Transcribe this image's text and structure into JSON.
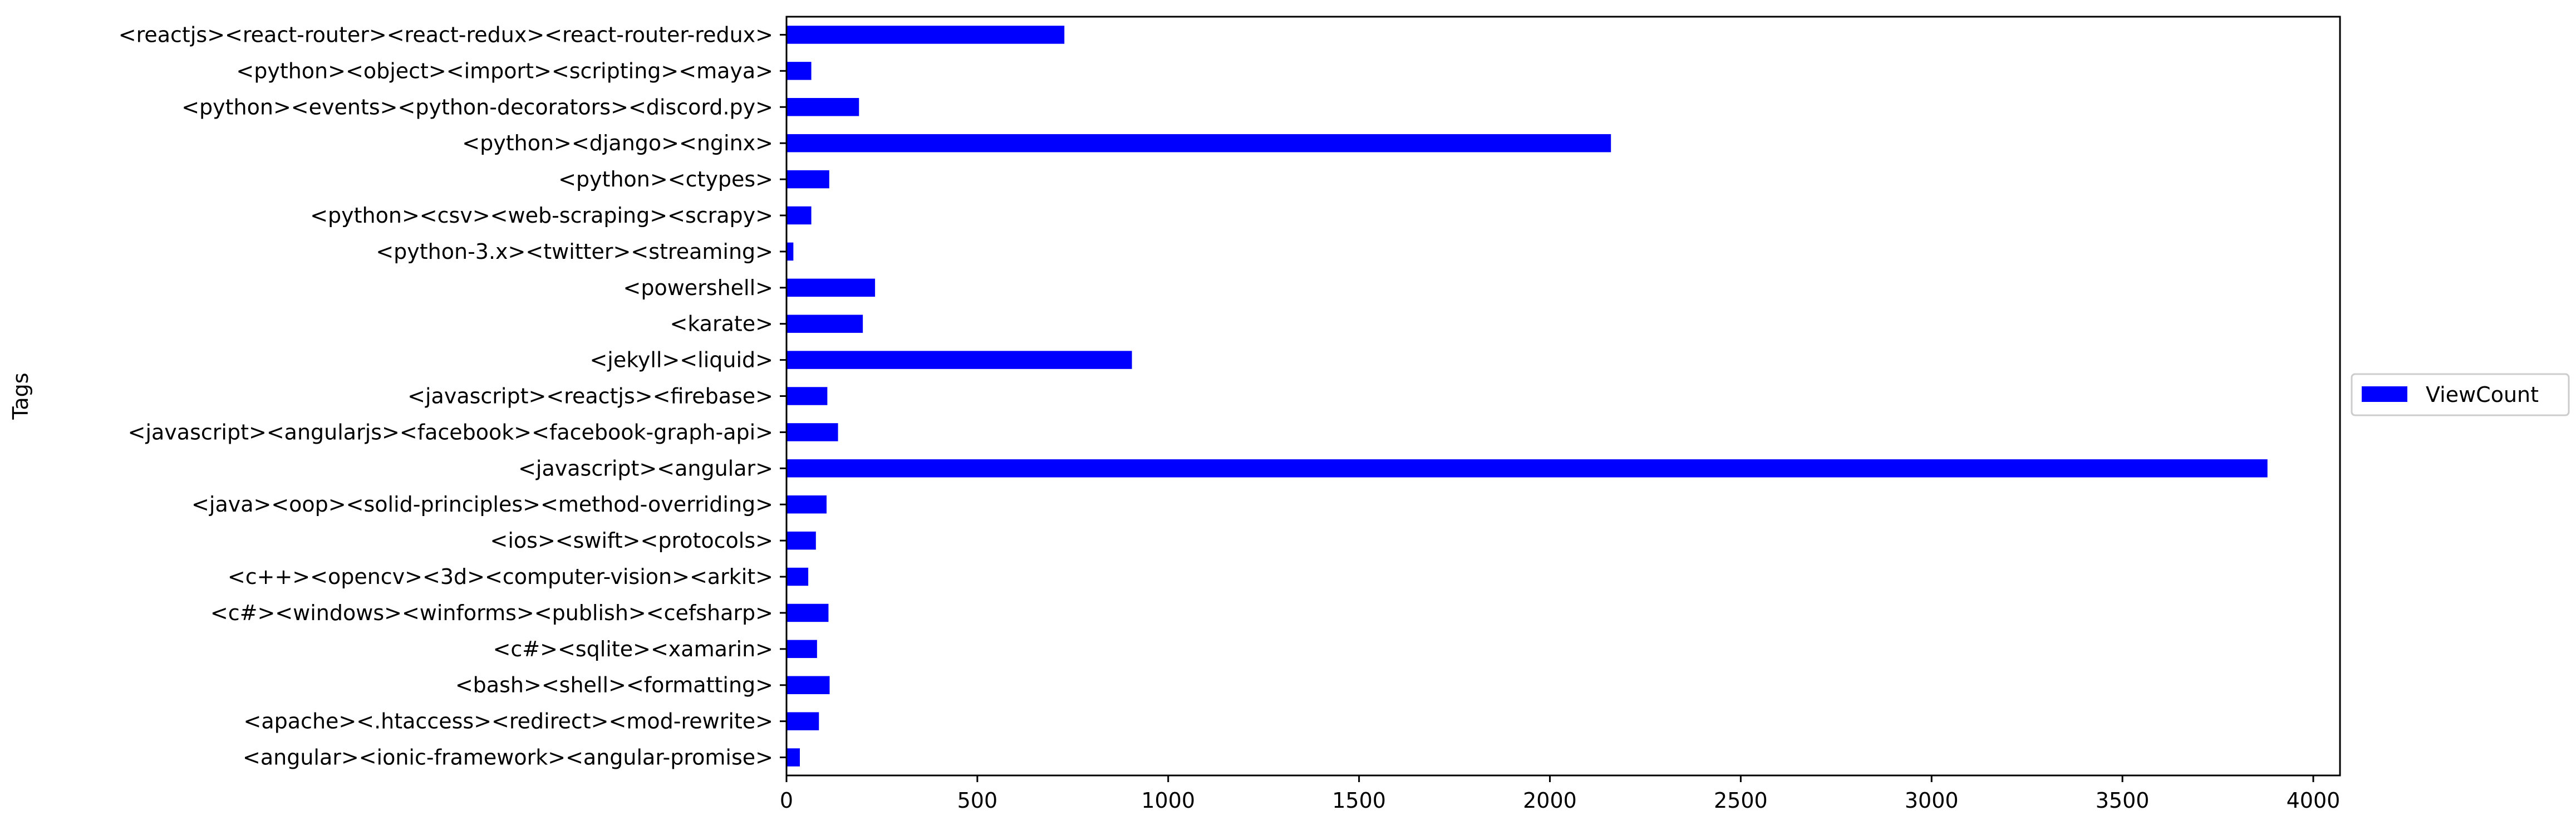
{
  "chart_data": {
    "type": "bar",
    "orientation": "horizontal",
    "ylabel": "Tags",
    "xlabel": "",
    "xlim": [
      0,
      4070
    ],
    "xticks": [
      0,
      500,
      1000,
      1500,
      2000,
      2500,
      3000,
      3500,
      4000
    ],
    "categories": [
      "<angular><ionic-framework><angular-promise>",
      "<apache><.htaccess><redirect><mod-rewrite>",
      "<bash><shell><formatting>",
      "<c#><sqlite><xamarin>",
      "<c#><windows><winforms><publish><cefsharp>",
      "<c++><opencv><3d><computer-vision><arkit>",
      "<ios><swift><protocols>",
      "<java><oop><solid-principles><method-overriding>",
      "<javascript><angular>",
      "<javascript><angularjs><facebook><facebook-graph-api>",
      "<javascript><reactjs><firebase>",
      "<jekyll><liquid>",
      "<karate>",
      "<powershell>",
      "<python-3.x><twitter><streaming>",
      "<python><csv><web-scraping><scrapy>",
      "<python><ctypes>",
      "<python><django><nginx>",
      "<python><events><python-decorators><discord.py>",
      "<python><object><import><scripting><maya>",
      "<reactjs><react-router><react-redux><react-router-redux>"
    ],
    "series": [
      {
        "name": "ViewCount",
        "color": "#0000ff",
        "values": [
          35,
          85,
          113,
          80,
          110,
          57,
          77,
          105,
          3880,
          135,
          107,
          905,
          200,
          232,
          18,
          65,
          112,
          2160,
          190,
          65,
          728
        ]
      }
    ],
    "legend": {
      "position": "right",
      "entries": [
        "ViewCount"
      ]
    },
    "grid": false
  }
}
